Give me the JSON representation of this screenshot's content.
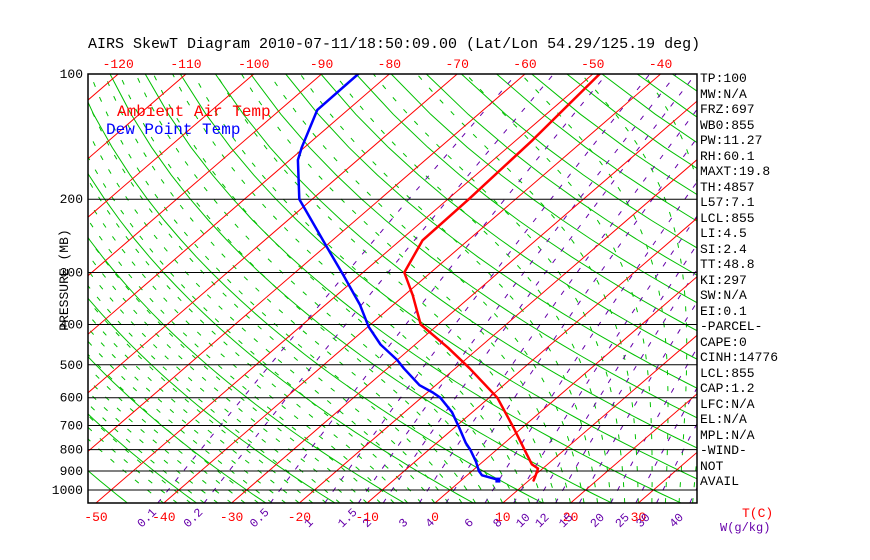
{
  "title": "AIRS SkewT Diagram 2010-07-11/18:50:09.00 (Lat/Lon 54.29/125.19 deg)",
  "legend": {
    "ambient": "Ambient Air Temp",
    "dew": "Dew Point Temp"
  },
  "y_axis": {
    "label": "PRESSURE (MB)",
    "ticks": [
      100,
      200,
      300,
      400,
      500,
      600,
      700,
      800,
      900,
      1000
    ]
  },
  "x_axis": {
    "label": "T(C)",
    "top_labels": [
      -120,
      -110,
      -100,
      -90,
      -80,
      -70,
      -60,
      -50,
      -40
    ],
    "bottom_labels": [
      -50,
      -40,
      -30,
      -20,
      -10,
      0,
      10,
      20,
      30
    ]
  },
  "mixing_axis": {
    "label": "W(g/kg)",
    "values": [
      0.1,
      0.2,
      0.5,
      1,
      1.5,
      2,
      3,
      4,
      6,
      8,
      10,
      12,
      15,
      20,
      25,
      30,
      40
    ]
  },
  "stats_panel": {
    "lines": [
      "TP:100",
      "MW:N/A",
      "FRZ:697",
      "WB0:855",
      "PW:11.27",
      "RH:60.1",
      "MAXT:19.8",
      "TH:4857",
      "L57:7.1",
      "LCL:855",
      "LI:4.5",
      "SI:2.4",
      "TT:48.8",
      "KI:297",
      "SW:N/A",
      "EI:0.1",
      "-PARCEL-",
      "CAPE:0",
      "CINH:14776",
      "LCL:855",
      "CAP:1.2",
      "LFC:N/A",
      "EL:N/A",
      "MPL:N/A",
      "-WIND-",
      "NOT",
      "AVAIL"
    ]
  },
  "colors": {
    "isotherm": "#ff0000",
    "adiabat": "#00c000",
    "moist_adiabat": "#00c000",
    "mixing_ratio": "#6600aa",
    "grid": "#000000",
    "ambient_curve": "#ff0000",
    "dew_curve": "#0000ff",
    "text": "#000000"
  },
  "chart_data": {
    "type": "line",
    "title": "AIRS SkewT Diagram 2010-07-11/18:50:09.00 (Lat/Lon 54.29/125.19 deg)",
    "xlabel": "T(C)",
    "ylabel": "PRESSURE (MB)",
    "y_scale": "log-pressure-inverted",
    "pressure_range_mb": [
      100,
      1075
    ],
    "isotherm_range_c": [
      -120,
      30
    ],
    "isotherm_step_c": 10,
    "grid": "skew-t",
    "legend_position": "top-left-inside",
    "series": [
      {
        "name": "Ambient Air Temp",
        "color": "#ff0000",
        "units": "[pressure_mb, temp_C]",
        "points": [
          [
            100,
            -49.0
          ],
          [
            144,
            -47.6
          ],
          [
            200,
            -46.9
          ],
          [
            251,
            -46.7
          ],
          [
            300,
            -43.9
          ],
          [
            340,
            -38.8
          ],
          [
            400,
            -32.6
          ],
          [
            455,
            -24.6
          ],
          [
            510,
            -17.9
          ],
          [
            600,
            -8.8
          ],
          [
            708,
            -1.3
          ],
          [
            800,
            4.1
          ],
          [
            868,
            7.7
          ],
          [
            888,
            9.3
          ],
          [
            925,
            10.2
          ],
          [
            949,
            10.7
          ]
        ]
      },
      {
        "name": "Dew Point Temp",
        "color": "#0000ff",
        "units": "[pressure_mb, temp_C]",
        "points": [
          [
            100,
            -84.6
          ],
          [
            122,
            -84.5
          ],
          [
            150,
            -80.4
          ],
          [
            161,
            -78.8
          ],
          [
            200,
            -71.9
          ],
          [
            212,
            -69.2
          ],
          [
            261,
            -59.6
          ],
          [
            304,
            -52.5
          ],
          [
            359,
            -44.9
          ],
          [
            405,
            -39.9
          ],
          [
            447,
            -35.1
          ],
          [
            487,
            -30.0
          ],
          [
            510,
            -27.6
          ],
          [
            560,
            -22.4
          ],
          [
            583,
            -19.2
          ],
          [
            600,
            -17.2
          ],
          [
            650,
            -13.0
          ],
          [
            708,
            -9.3
          ],
          [
            771,
            -5.7
          ],
          [
            800,
            -3.9
          ],
          [
            855,
            -1.0
          ],
          [
            900,
            1.0
          ],
          [
            922,
            2.2
          ],
          [
            944,
            5.2
          ]
        ]
      }
    ]
  }
}
